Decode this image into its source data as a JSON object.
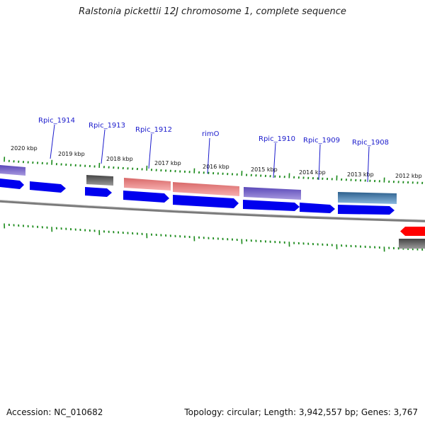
{
  "title": "Ralstonia pickettii 12J chromosome 1, complete sequence",
  "footer": {
    "accession": "Accession: NC_010682",
    "summary": "Topology: circular; Length: 3,942,557 bp; Genes: 3,767"
  },
  "kbp_labels": [
    "2020 kbp",
    "2019 kbp",
    "2018 kbp",
    "2017 kbp",
    "2016 kbp",
    "2015 kbp",
    "2014 kbp",
    "2013 kbp",
    "2012 kbp"
  ],
  "gene_labels": [
    "Rpic_1914",
    "Rpic_1913",
    "Rpic_1912",
    "rimO",
    "Rpic_1910",
    "Rpic_1909",
    "Rpic_1908"
  ],
  "colors": {
    "cds": "#0000ee",
    "trna_red": "#ff0000",
    "purple": "#7060c8",
    "salmon": "#f08888",
    "gray": "#666666",
    "steel": "#4a7fb0",
    "tick": "#1a8a1a",
    "backbone": "#777777",
    "label": "#1a1acc"
  }
}
